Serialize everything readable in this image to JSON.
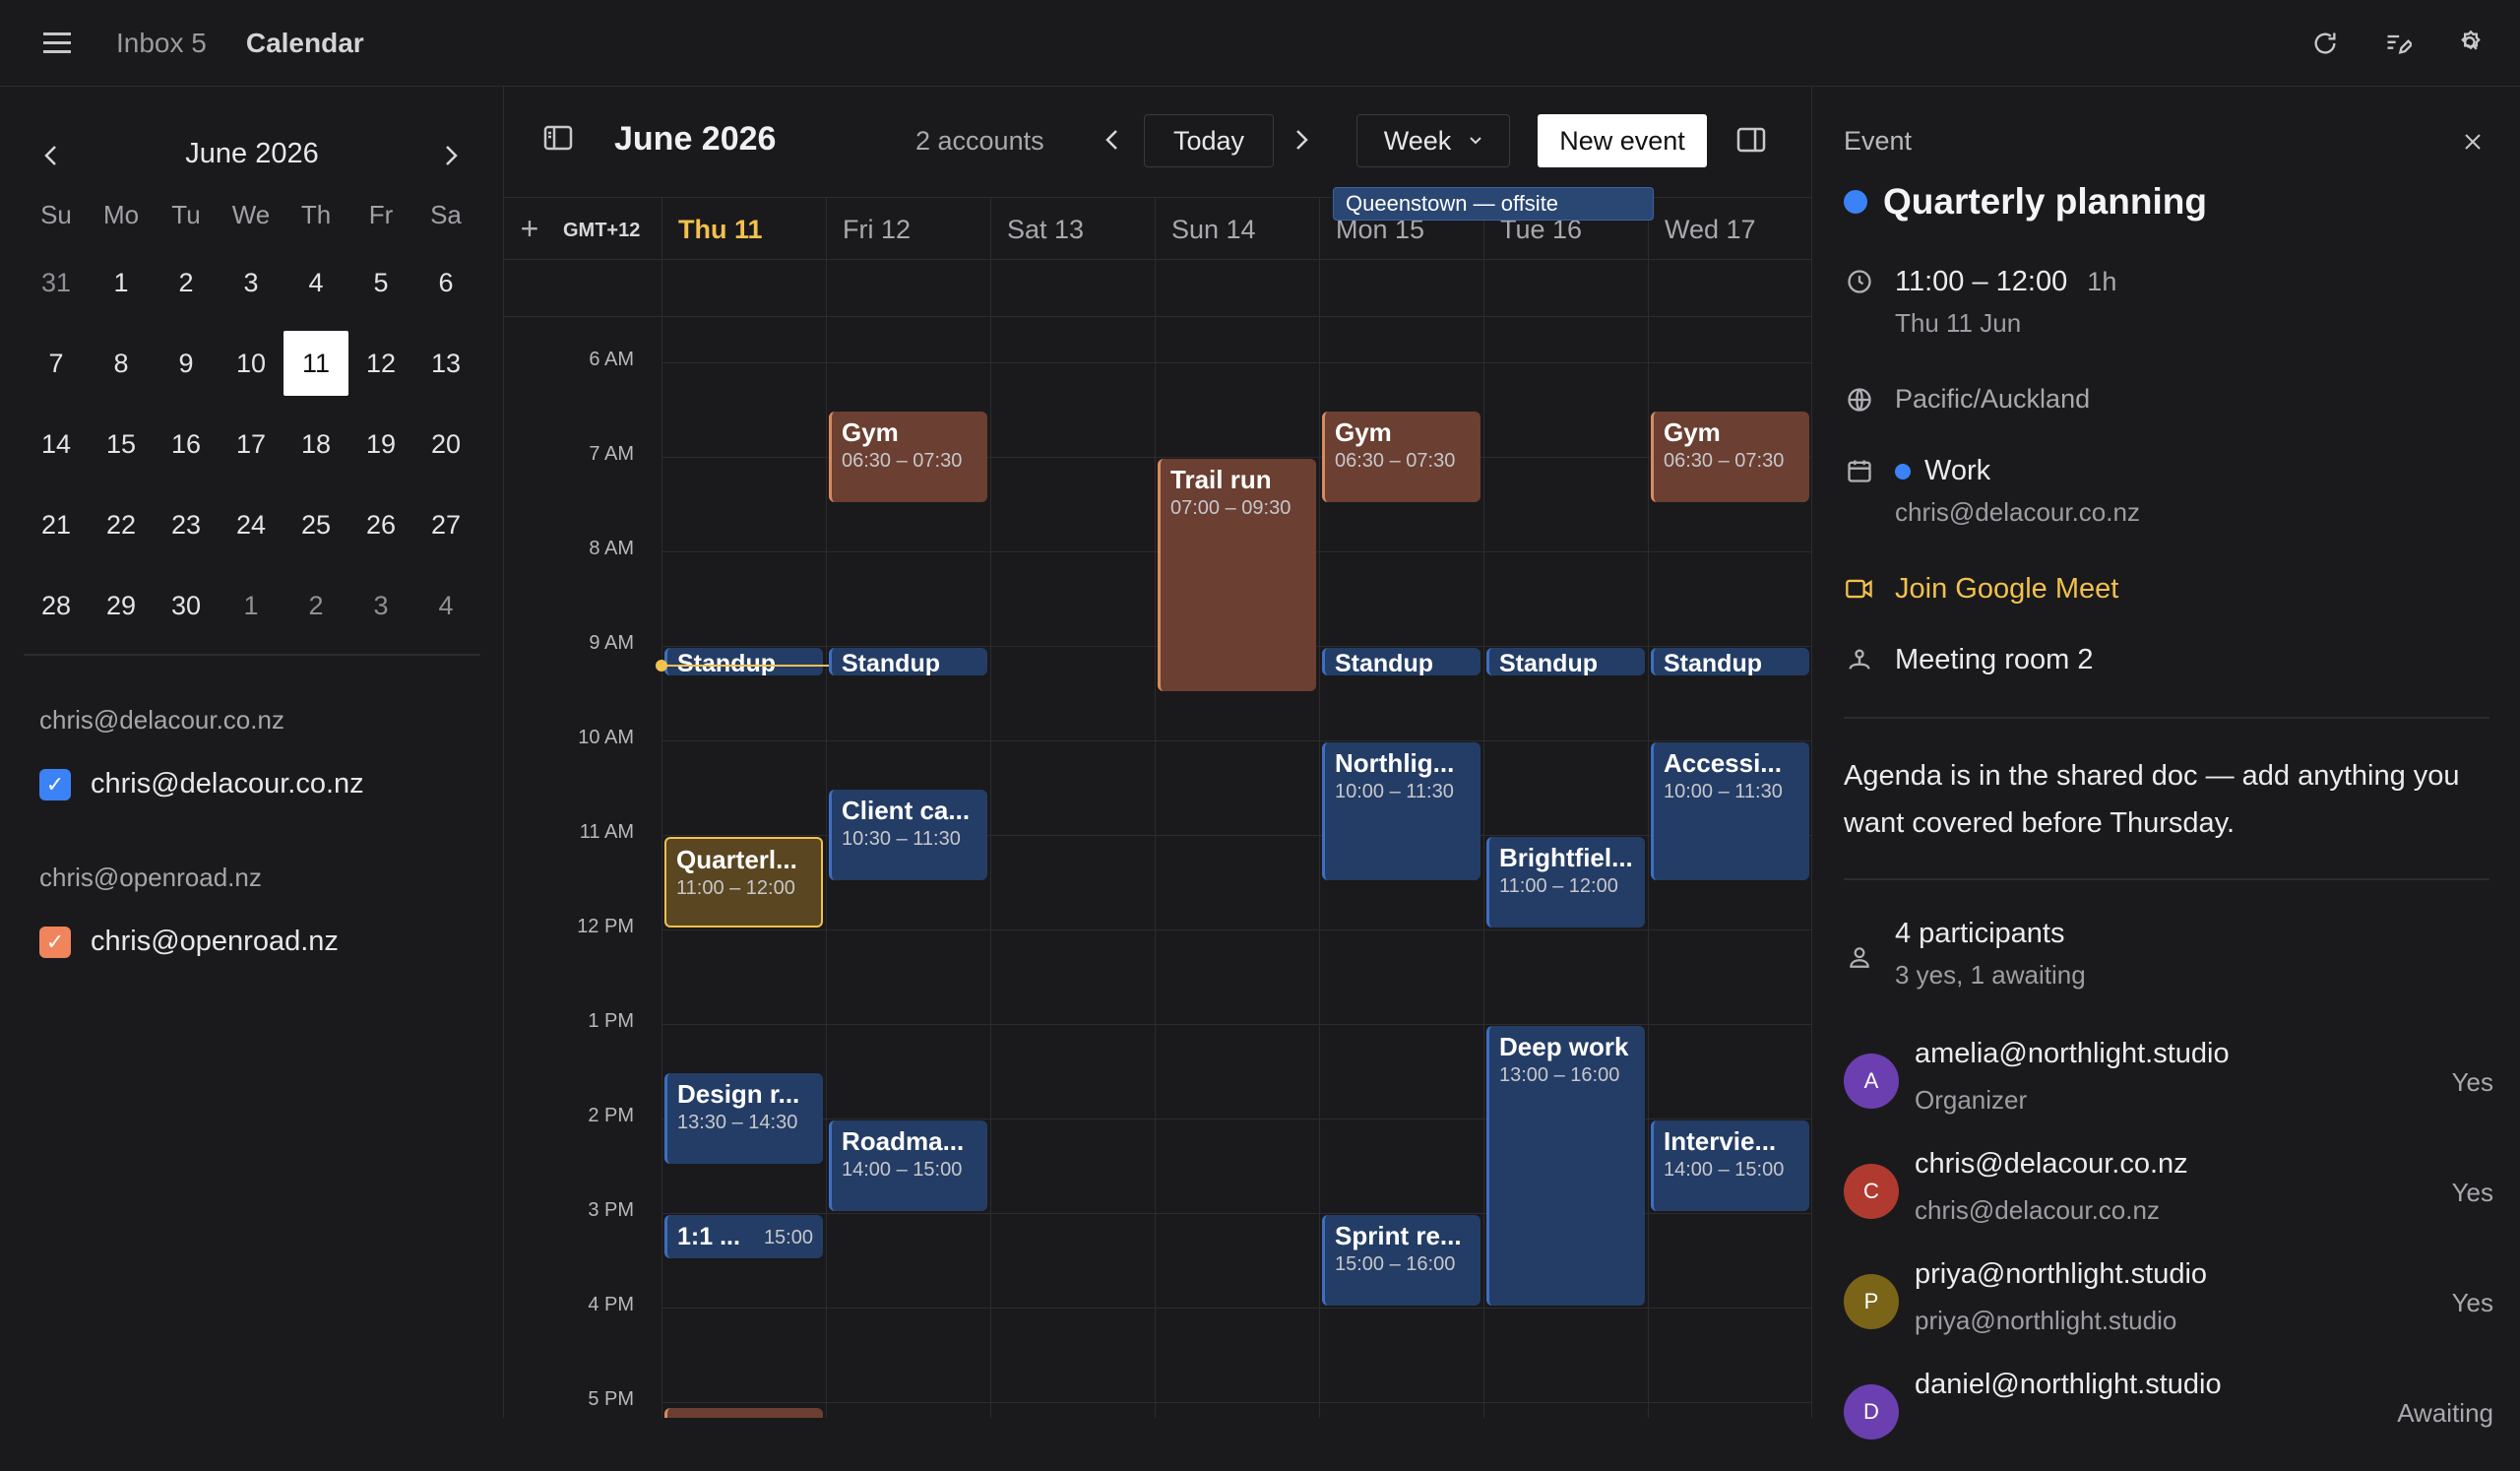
{
  "topbar": {
    "tabs": [
      {
        "label": "Inbox 5"
      },
      {
        "label": "Calendar"
      }
    ],
    "icons": [
      "menu-icon",
      "refresh-icon",
      "compose-icon",
      "search-settings-icon"
    ]
  },
  "mini_calendar": {
    "title": "June 2026",
    "weekdays": [
      "Su",
      "Mo",
      "Tu",
      "We",
      "Th",
      "Fr",
      "Sa"
    ],
    "days": [
      "31",
      "1",
      "2",
      "3",
      "4",
      "5",
      "6",
      "7",
      "8",
      "9",
      "10",
      "11",
      "12",
      "13",
      "14",
      "15",
      "16",
      "17",
      "18",
      "19",
      "20",
      "21",
      "22",
      "23",
      "24",
      "25",
      "26",
      "27",
      "28",
      "29",
      "30",
      "1",
      "2",
      "3",
      "4"
    ],
    "selected": "11"
  },
  "accounts": [
    {
      "header": "chris@delacour.co.nz",
      "calendar": "chris@delacour.co.nz",
      "color": "#3b82f6"
    },
    {
      "header": "chris@openroad.nz",
      "calendar": "chris@openroad.nz",
      "color": "#f0845c"
    }
  ],
  "main": {
    "title": "June 2026",
    "accounts": "2 accounts",
    "today": "Today",
    "view": "Week",
    "new_event": "New event",
    "timezone": "GMT+12",
    "days": [
      "Thu 11",
      "Fri 12",
      "Sat 13",
      "Sun 14",
      "Mon 15",
      "Tue 16",
      "Wed 17"
    ],
    "allday_event": "Queenstown — offsite",
    "hours": [
      "6 AM",
      "7 AM",
      "8 AM",
      "9 AM",
      "10 AM",
      "11 AM",
      "12 PM",
      "1 PM",
      "2 PM",
      "3 PM",
      "4 PM",
      "5 PM"
    ]
  },
  "events": [
    {
      "title": "Gym",
      "time": "06:30 – 07:30",
      "color": "brown"
    },
    {
      "title": "Gym",
      "time": "06:30 – 07:30",
      "color": "brown"
    },
    {
      "title": "Gym",
      "time": "06:30 – 07:30",
      "color": "brown"
    },
    {
      "title": "Trail run",
      "time": "07:00 – 09:30",
      "color": "brown"
    },
    {
      "title": "Standup",
      "color": "blue"
    },
    {
      "title": "Standup",
      "color": "blue"
    },
    {
      "title": "Standup",
      "color": "blue"
    },
    {
      "title": "Standup",
      "color": "blue"
    },
    {
      "title": "Standup",
      "color": "blue"
    },
    {
      "title": "Northlig...",
      "time": "10:00 – 11:30",
      "color": "blue"
    },
    {
      "title": "Accessi...",
      "time": "10:00 – 11:30",
      "color": "blue"
    },
    {
      "title": "Client ca...",
      "time": "10:30 – 11:30",
      "color": "blue"
    },
    {
      "title": "Quarterl...",
      "time": "11:00 – 12:00",
      "color": "gold"
    },
    {
      "title": "Brightfiel...",
      "time": "11:00 – 12:00",
      "color": "blue"
    },
    {
      "title": "Deep work",
      "time": "13:00 – 16:00",
      "color": "blue"
    },
    {
      "title": "Design r...",
      "time": "13:30 – 14:30",
      "color": "blue"
    },
    {
      "title": "Roadma...",
      "time": "14:00 – 15:00",
      "color": "blue"
    },
    {
      "title": "Intervie...",
      "time": "14:00 – 15:00",
      "color": "blue"
    },
    {
      "title": "1:1 ...",
      "time": "15:00",
      "color": "blue"
    },
    {
      "title": "Sprint re...",
      "time": "15:00 – 16:00",
      "color": "blue"
    }
  ],
  "panel": {
    "label": "Event",
    "title": "Quarterly planning",
    "time": "11:00 – 12:00",
    "duration": "1h",
    "date": "Thu 11 Jun",
    "timezone": "Pacific/Auckland",
    "calendar": "Work",
    "calendar_account": "chris@delacour.co.nz",
    "meet": "Join Google Meet",
    "room": "Meeting room 2",
    "description": "Agenda is in the shared doc — add anything you want covered before Thursday.",
    "participants_count": "4 participants",
    "participants_summary": "3 yes, 1 awaiting",
    "participants": [
      {
        "initial": "A",
        "email": "amelia@northlight.studio",
        "role": "Organizer",
        "status": "Yes",
        "color": "#6b3fb0"
      },
      {
        "initial": "C",
        "email": "chris@delacour.co.nz",
        "role": "chris@delacour.co.nz",
        "status": "Yes",
        "color": "#b03a30"
      },
      {
        "initial": "P",
        "email": "priya@northlight.studio",
        "role": "priya@northlight.studio",
        "status": "Yes",
        "color": "#7a6418"
      },
      {
        "initial": "D",
        "email": "daniel@northlight.studio",
        "role": "",
        "status": "Awaiting",
        "color": "#6b3fb0"
      }
    ]
  }
}
